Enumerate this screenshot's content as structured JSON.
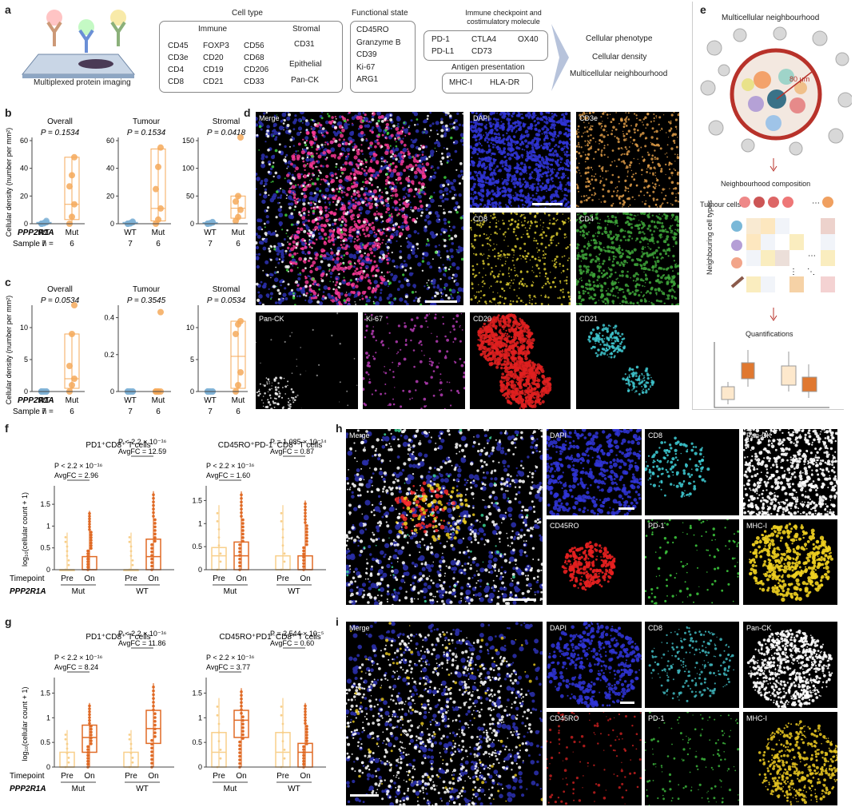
{
  "colors": {
    "wt": "#7fb2d6",
    "mut": "#f5a95a",
    "pre": "#f8cf8a",
    "on": "#e06a25"
  },
  "a": {
    "panel": "a",
    "imaging_caption": "Multiplexed protein imaging",
    "celltype": {
      "title": "Cell type",
      "immune_title": "Immune",
      "stromal_title": "Stromal",
      "epithelial_title": "Epithelial",
      "immune_col1": [
        "CD45",
        "CD3e",
        "CD4",
        "CD8"
      ],
      "immune_col2": [
        "FOXP3",
        "CD20",
        "CD19",
        "CD21"
      ],
      "immune_col3": [
        "CD56",
        "CD68",
        "CD206",
        "CD33"
      ],
      "stromal": "CD31",
      "epithelial": "Pan-CK"
    },
    "functional": {
      "title": "Functional state",
      "items": [
        "CD45RO",
        "Granzyme B",
        "CD39",
        "Ki-67",
        "ARG1"
      ]
    },
    "checkpoint": {
      "title": "Immune checkpoint and costimulatory molecule",
      "row1": [
        "PD-1",
        "CTLA4",
        "OX40"
      ],
      "row2": [
        "PD-L1",
        "CD73"
      ]
    },
    "antigen": {
      "title": "Antigen presentation",
      "items": [
        "MHC-I",
        "HLA-DR"
      ]
    },
    "outputs": [
      "Cellular phenotype",
      "Cellular density",
      "Multicellular neighbourhood"
    ]
  },
  "b": {
    "panel": "b",
    "ylabel": "Cellular density (number per mm²)",
    "gene": "PPP2R1A",
    "sample_label": "Sample n =",
    "groups": [
      "WT",
      "Mut"
    ],
    "n": [
      "7",
      "6"
    ],
    "charts": [
      {
        "title": "Overall",
        "p": "P = 0.1534",
        "ymax": 60,
        "ticks": [
          0,
          20,
          40,
          60
        ],
        "wt": [
          0,
          0.5,
          1,
          0,
          0.3,
          2,
          0
        ],
        "mut": [
          0,
          5,
          14,
          27,
          35,
          48
        ],
        "box_wt": [
          0,
          0,
          0.5,
          1,
          2
        ],
        "box_mut": [
          0,
          3,
          14,
          48,
          48
        ]
      },
      {
        "title": "Tumour",
        "p": "P = 0.1534",
        "ymax": 60,
        "ticks": [
          0,
          20,
          40,
          60
        ],
        "wt": [
          0,
          0.4,
          1,
          0,
          0.2,
          1.5,
          0
        ],
        "mut": [
          0,
          3,
          11,
          25,
          41,
          55
        ],
        "box_wt": [
          0,
          0,
          0.4,
          1,
          1.5
        ],
        "box_mut": [
          0,
          2,
          11,
          54,
          55
        ]
      },
      {
        "title": "Stromal",
        "p": "P = 0.0418",
        "ymax": 150,
        "ticks": [
          0,
          50,
          100,
          150
        ],
        "wt": [
          0,
          1,
          2,
          0,
          0.5,
          3,
          0
        ],
        "mut": [
          5,
          12,
          25,
          40,
          50,
          175
        ],
        "box_wt": [
          0,
          0,
          1,
          2,
          3
        ],
        "box_mut": [
          5,
          10,
          28,
          50,
          50
        ]
      }
    ]
  },
  "c": {
    "panel": "c",
    "ylabel": "Cellular density (number per mm²)",
    "gene": "PPP2R1A",
    "sample_label": "Sample n =",
    "groups": [
      "WT",
      "Mut"
    ],
    "n": [
      "7",
      "6"
    ],
    "charts": [
      {
        "title": "Overall",
        "p": "P = 0.0534",
        "ymax": 13,
        "ticks": [
          0,
          5,
          10
        ],
        "wt": [
          0,
          0,
          0,
          0,
          0,
          0,
          0
        ],
        "mut": [
          0,
          1,
          2,
          4,
          9,
          14
        ],
        "box_wt": [
          0,
          0,
          0,
          0,
          0
        ],
        "box_mut": [
          0,
          0.5,
          2,
          9,
          9
        ]
      },
      {
        "title": "Tumour",
        "p": "P = 0.3545",
        "ymax": 0.45,
        "ticks": [
          0,
          0.2,
          0.4
        ],
        "wt": [
          0,
          0,
          0,
          0,
          0,
          0,
          0
        ],
        "mut": [
          0,
          0,
          0,
          0,
          0,
          0.43
        ],
        "box_wt": [
          0,
          0,
          0,
          0,
          0
        ],
        "box_mut": [
          0,
          0,
          0,
          0,
          0
        ]
      },
      {
        "title": "Stromal",
        "p": "P = 0.0534",
        "ymax": 13,
        "ticks": [
          0,
          5,
          10
        ],
        "wt": [
          0,
          0,
          0,
          0,
          0,
          0,
          0
        ],
        "mut": [
          0,
          1,
          3,
          9,
          10.5,
          11
        ],
        "box_wt": [
          0,
          0,
          0,
          0,
          0
        ],
        "box_mut": [
          0,
          0.5,
          5.5,
          11,
          11
        ]
      }
    ]
  },
  "d": {
    "panel": "d",
    "labels": [
      "Merge",
      "DAPI",
      "CD3e",
      "CD8",
      "CD4",
      "Pan-CK",
      "Ki-67",
      "CD20",
      "CD21"
    ]
  },
  "e": {
    "panel": "e",
    "title": "Multicellular neighbourhood",
    "radius": "80 μm",
    "step1": "Neighbourhood composition",
    "tumour_cells": "Tumour cells",
    "neighbouring": "Neighbouring cell types",
    "step2": "Quantifications"
  },
  "f": {
    "panel": "f",
    "ylabel": "log₁₀(cellular count + 1)",
    "timepoint": "Timepoint",
    "gene": "PPP2R1A",
    "tp": [
      "Pre",
      "On"
    ],
    "charts": [
      {
        "title": "PD1⁺CD8⁺ T cells",
        "groups": [
          "Mut",
          "WT"
        ],
        "ymax": 1.85,
        "ticks": [
          0,
          0.5,
          1,
          1.5
        ],
        "stats": [
          {
            "p": "P < 2.2 × 10⁻¹⁶",
            "fc": "AvgFC = 2.96"
          },
          {
            "p": "P < 2.2 × 10⁻¹⁶",
            "fc": "AvgFC = 12.59"
          }
        ],
        "boxes": [
          [
            0,
            0,
            0,
            0,
            0.85
          ],
          [
            0,
            0,
            0,
            0.3,
            1.35
          ],
          [
            0,
            0,
            0,
            0,
            0.85
          ],
          [
            0,
            0,
            0.3,
            0.7,
            1.8
          ]
        ]
      },
      {
        "title": "CD45RO⁺PD-1⁻CD8⁺ T cells",
        "groups": [
          "Mut",
          "WT"
        ],
        "ymax": 1.75,
        "ticks": [
          0,
          0.5,
          1,
          1.5
        ],
        "stats": [
          {
            "p": "P < 2.2 × 10⁻¹⁶",
            "fc": "AvgFC = 1.60"
          },
          {
            "p": "P = 1.085 × 10⁻¹⁴",
            "fc": "AvgFC = 0.87"
          }
        ],
        "boxes": [
          [
            0,
            0,
            0.3,
            0.48,
            1.4
          ],
          [
            0,
            0,
            0.3,
            0.6,
            1.7
          ],
          [
            0,
            0,
            0,
            0.3,
            1.4
          ],
          [
            0,
            0,
            0,
            0.3,
            1.5
          ]
        ]
      }
    ]
  },
  "g": {
    "panel": "g",
    "ylabel": "log₁₀(cellular count + 1)",
    "timepoint": "Timepoint",
    "gene": "PPP2R1A",
    "tp": [
      "Pre",
      "On"
    ],
    "charts": [
      {
        "title": "PD1⁺CD8⁺ T cells",
        "groups": [
          "Mut",
          "WT"
        ],
        "ymax": 1.75,
        "ticks": [
          0,
          0.5,
          1,
          1.5
        ],
        "stats": [
          {
            "p": "P < 2.2 × 10⁻¹⁶",
            "fc": "AvgFC = 8.24"
          },
          {
            "p": "P < 2.2 × 10⁻¹⁶",
            "fc": "AvgFC = 11.86"
          }
        ],
        "boxes": [
          [
            0,
            0,
            0,
            0.3,
            0.75
          ],
          [
            0,
            0.3,
            0.6,
            0.85,
            1.3
          ],
          [
            0,
            0,
            0,
            0.3,
            0.75
          ],
          [
            0,
            0.48,
            0.78,
            1.15,
            1.7
          ]
        ]
      },
      {
        "title": "CD45RO⁺PD1⁻CD8⁺ T cells",
        "groups": [
          "Mut",
          "WT"
        ],
        "ymax": 1.75,
        "ticks": [
          0,
          0.5,
          1,
          1.5
        ],
        "stats": [
          {
            "p": "P < 2.2 × 10⁻¹⁶",
            "fc": "AvgFC = 3.77"
          },
          {
            "p": "P = 2.544 × 10⁻⁵",
            "fc": "AvgFC = 0.60"
          }
        ],
        "boxes": [
          [
            0,
            0,
            0.3,
            0.7,
            1.4
          ],
          [
            0,
            0.6,
            0.95,
            1.15,
            1.6
          ],
          [
            0,
            0,
            0.3,
            0.7,
            1.4
          ],
          [
            0,
            0,
            0.3,
            0.48,
            1.3
          ]
        ]
      }
    ]
  },
  "h": {
    "panel": "h",
    "labels": [
      "Merge",
      "DAPI",
      "CD8",
      "Pan-CK",
      "CD45RO",
      "PD-1",
      "MHC-I"
    ]
  },
  "i": {
    "panel": "i",
    "labels": [
      "Merge",
      "DAPI",
      "CD8",
      "Pan-CK",
      "CD45RO",
      "PD-1",
      "MHC-I"
    ]
  }
}
